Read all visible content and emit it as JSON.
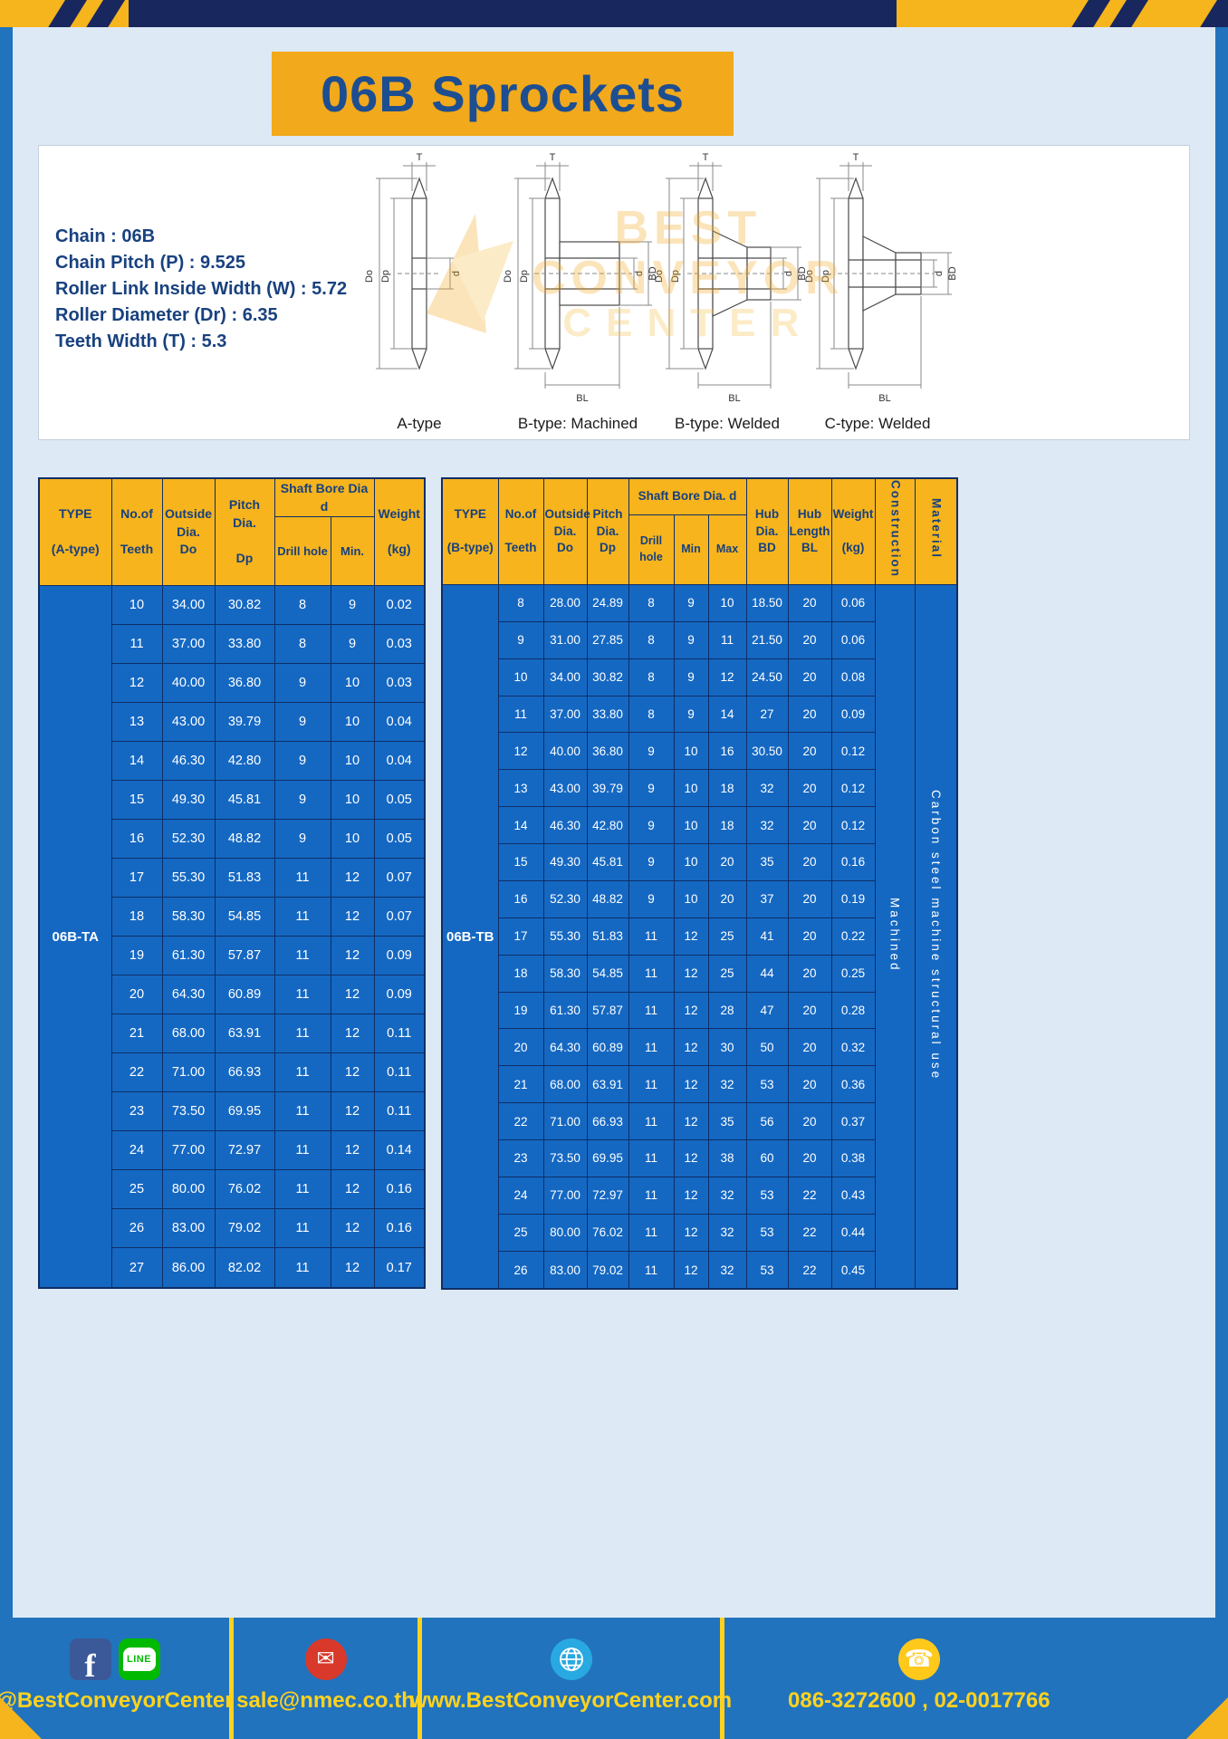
{
  "page": {
    "title": "06B Sprockets"
  },
  "colors": {
    "frame_blue": "#2173bd",
    "accent_yellow": "#f6b41d",
    "banner_yellow": "#f2a91b",
    "table_header_yellow": "#f7b41c",
    "table_body_blue": "#1568c2",
    "navy": "#19275f",
    "footer_text_yellow": "#ffd21e",
    "title_text_blue": "#1d4e91"
  },
  "specs": {
    "lines": [
      "Chain : 06B",
      "Chain Pitch (P) : 9.525",
      "Roller Link Inside Width (W) : 5.72",
      "Roller Diameter (Dr) : 6.35",
      "Teeth Width (T) : 5.3"
    ]
  },
  "diagrams": {
    "labels": [
      "A-type",
      "B-type: Machined",
      "B-type: Welded",
      "C-type: Welded"
    ],
    "dims": {
      "T": "T",
      "Do": "Do",
      "Dp": "Dp",
      "d": "d",
      "BD": "BD",
      "BL": "BL"
    },
    "watermark": [
      "BEST",
      "CONVEYOR",
      "CENTER"
    ]
  },
  "table_a": {
    "headers": {
      "type": "TYPE\n\n(A-type)",
      "teeth": "No.of\n\nTeeth",
      "outside": "Outside\nDia.\nDo",
      "pitch": "Pitch Dia.\n\nDp",
      "bore_group": "Shaft Bore Dia d",
      "drill": "Drill hole",
      "min": "Min.",
      "weight": "Weight\n\n(kg)"
    },
    "type_value": "06B-TA",
    "rows": [
      [
        "10",
        "34.00",
        "30.82",
        "8",
        "9",
        "0.02"
      ],
      [
        "11",
        "37.00",
        "33.80",
        "8",
        "9",
        "0.03"
      ],
      [
        "12",
        "40.00",
        "36.80",
        "9",
        "10",
        "0.03"
      ],
      [
        "13",
        "43.00",
        "39.79",
        "9",
        "10",
        "0.04"
      ],
      [
        "14",
        "46.30",
        "42.80",
        "9",
        "10",
        "0.04"
      ],
      [
        "15",
        "49.30",
        "45.81",
        "9",
        "10",
        "0.05"
      ],
      [
        "16",
        "52.30",
        "48.82",
        "9",
        "10",
        "0.05"
      ],
      [
        "17",
        "55.30",
        "51.83",
        "11",
        "12",
        "0.07"
      ],
      [
        "18",
        "58.30",
        "54.85",
        "11",
        "12",
        "0.07"
      ],
      [
        "19",
        "61.30",
        "57.87",
        "11",
        "12",
        "0.09"
      ],
      [
        "20",
        "64.30",
        "60.89",
        "11",
        "12",
        "0.09"
      ],
      [
        "21",
        "68.00",
        "63.91",
        "11",
        "12",
        "0.11"
      ],
      [
        "22",
        "71.00",
        "66.93",
        "11",
        "12",
        "0.11"
      ],
      [
        "23",
        "73.50",
        "69.95",
        "11",
        "12",
        "0.11"
      ],
      [
        "24",
        "77.00",
        "72.97",
        "11",
        "12",
        "0.14"
      ],
      [
        "25",
        "80.00",
        "76.02",
        "11",
        "12",
        "0.16"
      ],
      [
        "26",
        "83.00",
        "79.02",
        "11",
        "12",
        "0.16"
      ],
      [
        "27",
        "86.00",
        "82.02",
        "11",
        "12",
        "0.17"
      ]
    ]
  },
  "table_b": {
    "headers": {
      "type": "TYPE\n\n(B-type)",
      "teeth": "No.of\n\nTeeth",
      "outside": "Outside\nDia.\nDo",
      "pitch": "Pitch\nDia.\nDp",
      "bore_group": "Shaft Bore Dia. d",
      "drill": "Drill hole",
      "min": "Min",
      "max": "Max",
      "hub_dia": "Hub\nDia.\nBD",
      "hub_len": "Hub\nLength\nBL",
      "weight": "Weight\n\n(kg)",
      "construction": "Construction",
      "material": "Material"
    },
    "type_value": "06B-TB",
    "trailing": [
      {
        "name": "construction-cell",
        "value": "Machined"
      },
      {
        "name": "material-cell",
        "value": "Carbon steel machine structural use"
      }
    ],
    "rows": [
      [
        "8",
        "28.00",
        "24.89",
        "8",
        "9",
        "10",
        "18.50",
        "20",
        "0.06"
      ],
      [
        "9",
        "31.00",
        "27.85",
        "8",
        "9",
        "11",
        "21.50",
        "20",
        "0.06"
      ],
      [
        "10",
        "34.00",
        "30.82",
        "8",
        "9",
        "12",
        "24.50",
        "20",
        "0.08"
      ],
      [
        "11",
        "37.00",
        "33.80",
        "8",
        "9",
        "14",
        "27",
        "20",
        "0.09"
      ],
      [
        "12",
        "40.00",
        "36.80",
        "9",
        "10",
        "16",
        "30.50",
        "20",
        "0.12"
      ],
      [
        "13",
        "43.00",
        "39.79",
        "9",
        "10",
        "18",
        "32",
        "20",
        "0.12"
      ],
      [
        "14",
        "46.30",
        "42.80",
        "9",
        "10",
        "18",
        "32",
        "20",
        "0.12"
      ],
      [
        "15",
        "49.30",
        "45.81",
        "9",
        "10",
        "20",
        "35",
        "20",
        "0.16"
      ],
      [
        "16",
        "52.30",
        "48.82",
        "9",
        "10",
        "20",
        "37",
        "20",
        "0.19"
      ],
      [
        "17",
        "55.30",
        "51.83",
        "11",
        "12",
        "25",
        "41",
        "20",
        "0.22"
      ],
      [
        "18",
        "58.30",
        "54.85",
        "11",
        "12",
        "25",
        "44",
        "20",
        "0.25"
      ],
      [
        "19",
        "61.30",
        "57.87",
        "11",
        "12",
        "28",
        "47",
        "20",
        "0.28"
      ],
      [
        "20",
        "64.30",
        "60.89",
        "11",
        "12",
        "30",
        "50",
        "20",
        "0.32"
      ],
      [
        "21",
        "68.00",
        "63.91",
        "11",
        "12",
        "32",
        "53",
        "20",
        "0.36"
      ],
      [
        "22",
        "71.00",
        "66.93",
        "11",
        "12",
        "35",
        "56",
        "20",
        "0.37"
      ],
      [
        "23",
        "73.50",
        "69.95",
        "11",
        "12",
        "38",
        "60",
        "20",
        "0.38"
      ],
      [
        "24",
        "77.00",
        "72.97",
        "11",
        "12",
        "32",
        "53",
        "22",
        "0.43"
      ],
      [
        "25",
        "80.00",
        "76.02",
        "11",
        "12",
        "32",
        "53",
        "22",
        "0.44"
      ],
      [
        "26",
        "83.00",
        "79.02",
        "11",
        "12",
        "32",
        "53",
        "22",
        "0.45"
      ]
    ]
  },
  "footer": {
    "line_badge": "LINE",
    "icons": [
      "facebook-icon",
      "line-icon",
      "email-icon",
      "globe-icon",
      "phone-icon"
    ],
    "segments": [
      {
        "label": "@BestConveyorCenter"
      },
      {
        "label": "sale@nmec.co.th"
      },
      {
        "label": "www.BestConveyorCenter.com"
      },
      {
        "label": "086-3272600 , 02-0017766"
      }
    ]
  }
}
